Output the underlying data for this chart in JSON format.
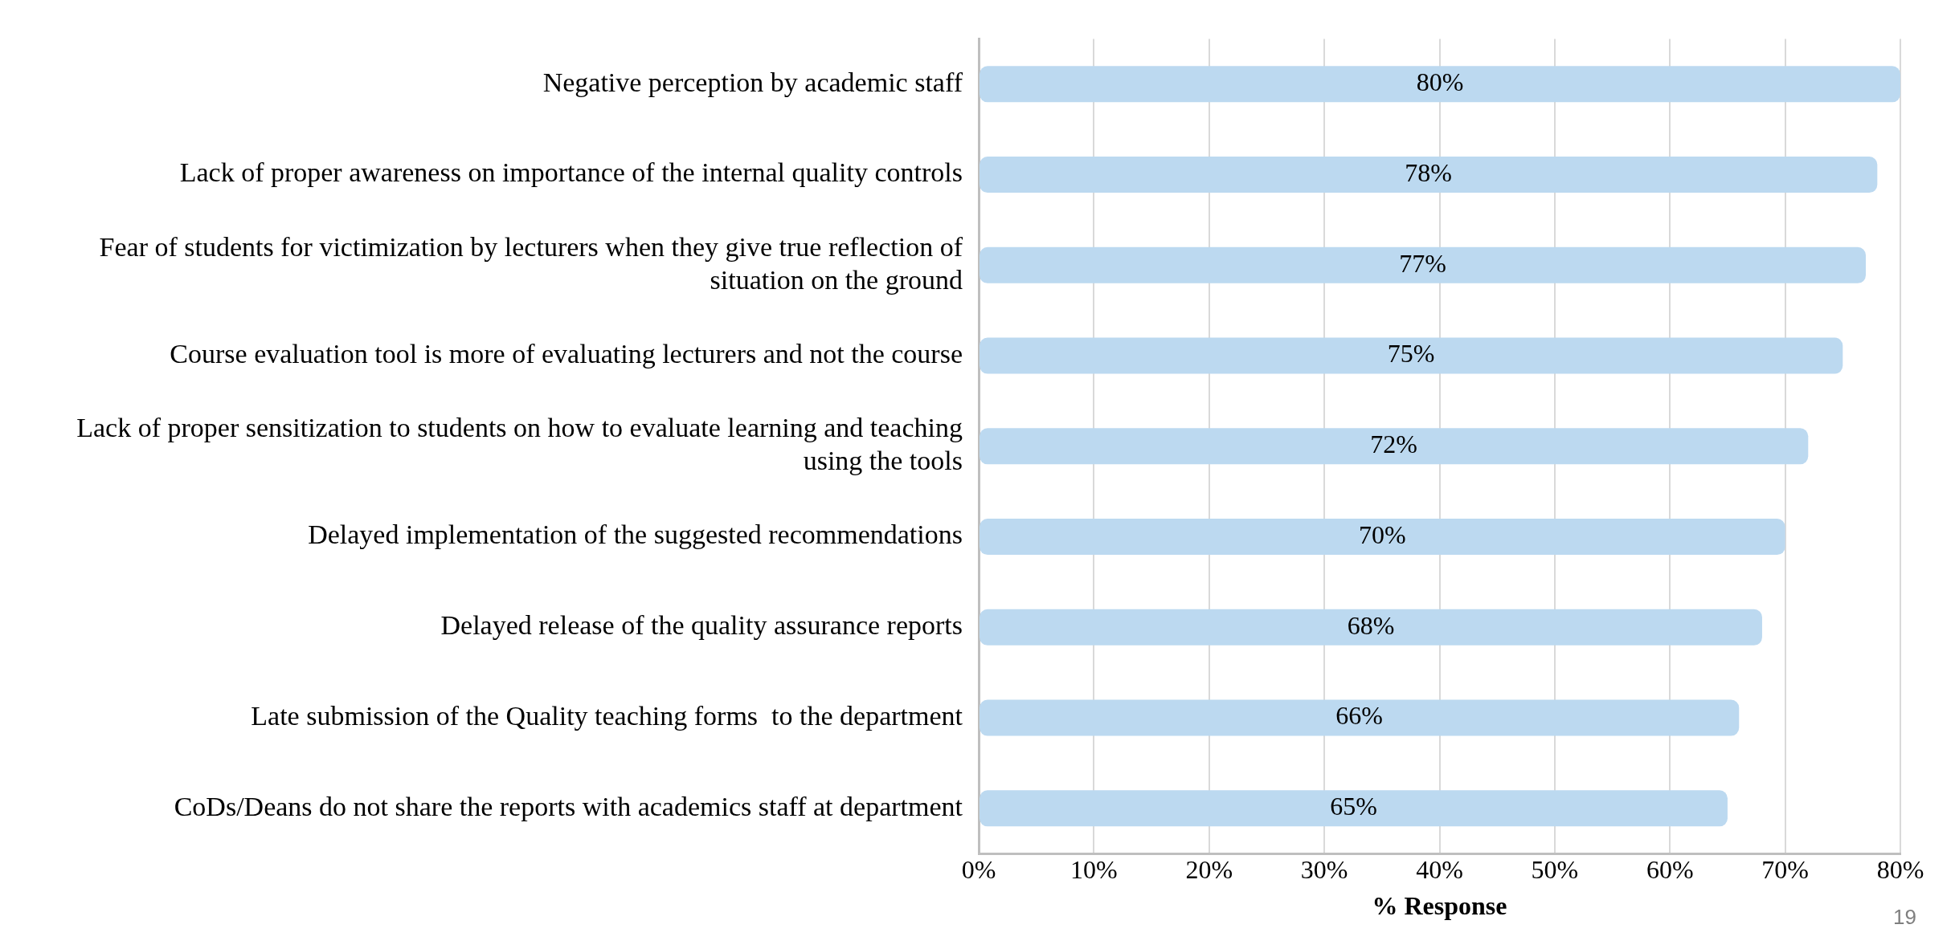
{
  "chart_data": {
    "type": "bar",
    "orientation": "horizontal",
    "xlabel": "% Response",
    "categories": [
      "Negative perception by academic staff",
      "Lack of proper awareness on importance of the internal quality controls",
      "Fear of students for victimization by lecturers when they give true reflection of situation on the ground",
      "Course evaluation tool is more of evaluating lecturers and not the course",
      "Lack of proper sensitization to students on how to evaluate learning and teaching using the tools",
      "Delayed implementation of the suggested recommendations",
      "Delayed release of the quality assurance reports",
      "Late submission of the Quality teaching forms  to the department",
      "CoDs/Deans do not share the reports with academics staff at department"
    ],
    "values": [
      80,
      78,
      77,
      75,
      72,
      70,
      68,
      66,
      65
    ],
    "value_labels": [
      "80%",
      "78%",
      "77%",
      "75%",
      "72%",
      "70%",
      "68%",
      "66%",
      "65%"
    ],
    "color": "#bcd9f0",
    "xlim": [
      0,
      80
    ],
    "xticks": [
      {
        "value": 0,
        "label": "0%"
      },
      {
        "value": 10,
        "label": "10%"
      },
      {
        "value": 20,
        "label": "20%"
      },
      {
        "value": 30,
        "label": "30%"
      },
      {
        "value": 40,
        "label": "40%"
      },
      {
        "value": 50,
        "label": "50%"
      },
      {
        "value": 60,
        "label": "60%"
      },
      {
        "value": 70,
        "label": "70%"
      },
      {
        "value": 80,
        "label": "80%"
      }
    ],
    "grid": "x",
    "legend": false,
    "annotations": [
      "19"
    ]
  }
}
